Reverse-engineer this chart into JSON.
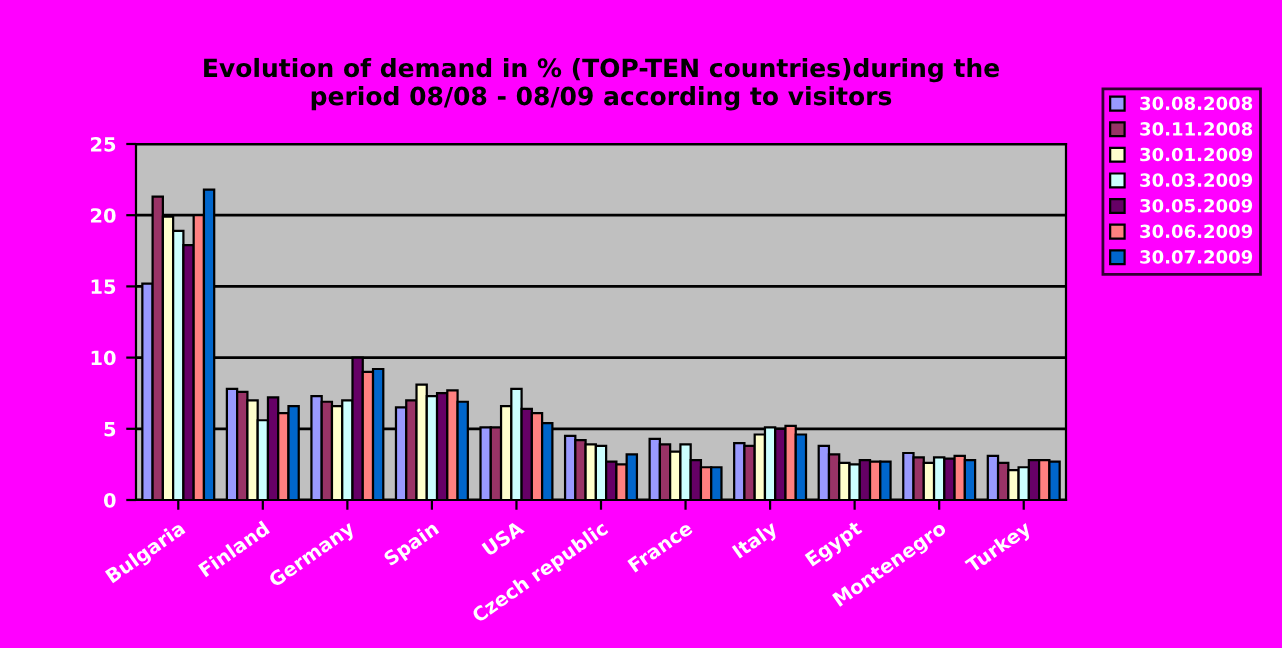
{
  "chart_data": {
    "type": "bar",
    "title": "Evolution of demand in % (TOP-TEN countries)during the\nperiod 08/08 - 08/09 according to visitors",
    "categories": [
      "Bulgaria",
      "Finland",
      "Germany",
      "Spain",
      "USA",
      "Czech republic",
      "France",
      "Italy",
      "Egypt",
      "Montenegro",
      "Turkey"
    ],
    "series": [
      {
        "name": "30.08.2008",
        "color": "#9999ff",
        "values": [
          15.2,
          7.8,
          7.3,
          6.5,
          5.1,
          4.5,
          4.3,
          4.0,
          3.8,
          3.3,
          3.1
        ]
      },
      {
        "name": "30.11.2008",
        "color": "#993366",
        "values": [
          21.3,
          7.6,
          6.9,
          7.0,
          5.1,
          4.2,
          3.9,
          3.8,
          3.2,
          3.0,
          2.6
        ]
      },
      {
        "name": "30.01.2009",
        "color": "#ffffcc",
        "values": [
          19.9,
          7.0,
          6.6,
          8.1,
          6.6,
          3.9,
          3.4,
          4.6,
          2.6,
          2.6,
          2.1
        ]
      },
      {
        "name": "30.03.2009",
        "color": "#ccffff",
        "values": [
          18.9,
          5.6,
          7.0,
          7.3,
          7.8,
          3.8,
          3.9,
          5.1,
          2.5,
          3.0,
          2.3
        ]
      },
      {
        "name": "30.05.2009",
        "color": "#660066",
        "values": [
          17.9,
          7.2,
          10.0,
          7.5,
          6.4,
          2.7,
          2.8,
          5.0,
          2.8,
          2.9,
          2.8
        ]
      },
      {
        "name": "30.06.2009",
        "color": "#ff8080",
        "values": [
          20.0,
          6.1,
          9.0,
          7.7,
          6.1,
          2.5,
          2.3,
          5.2,
          2.7,
          3.1,
          2.8
        ]
      },
      {
        "name": "30.07.2009",
        "color": "#0066cc",
        "values": [
          21.8,
          6.6,
          9.2,
          6.9,
          5.4,
          3.2,
          2.3,
          4.6,
          2.7,
          2.8,
          2.7
        ]
      }
    ],
    "ylim": [
      0,
      25
    ],
    "yticks": [
      0,
      5,
      10,
      15,
      20,
      25
    ],
    "grid": "y",
    "legend": "top right"
  }
}
